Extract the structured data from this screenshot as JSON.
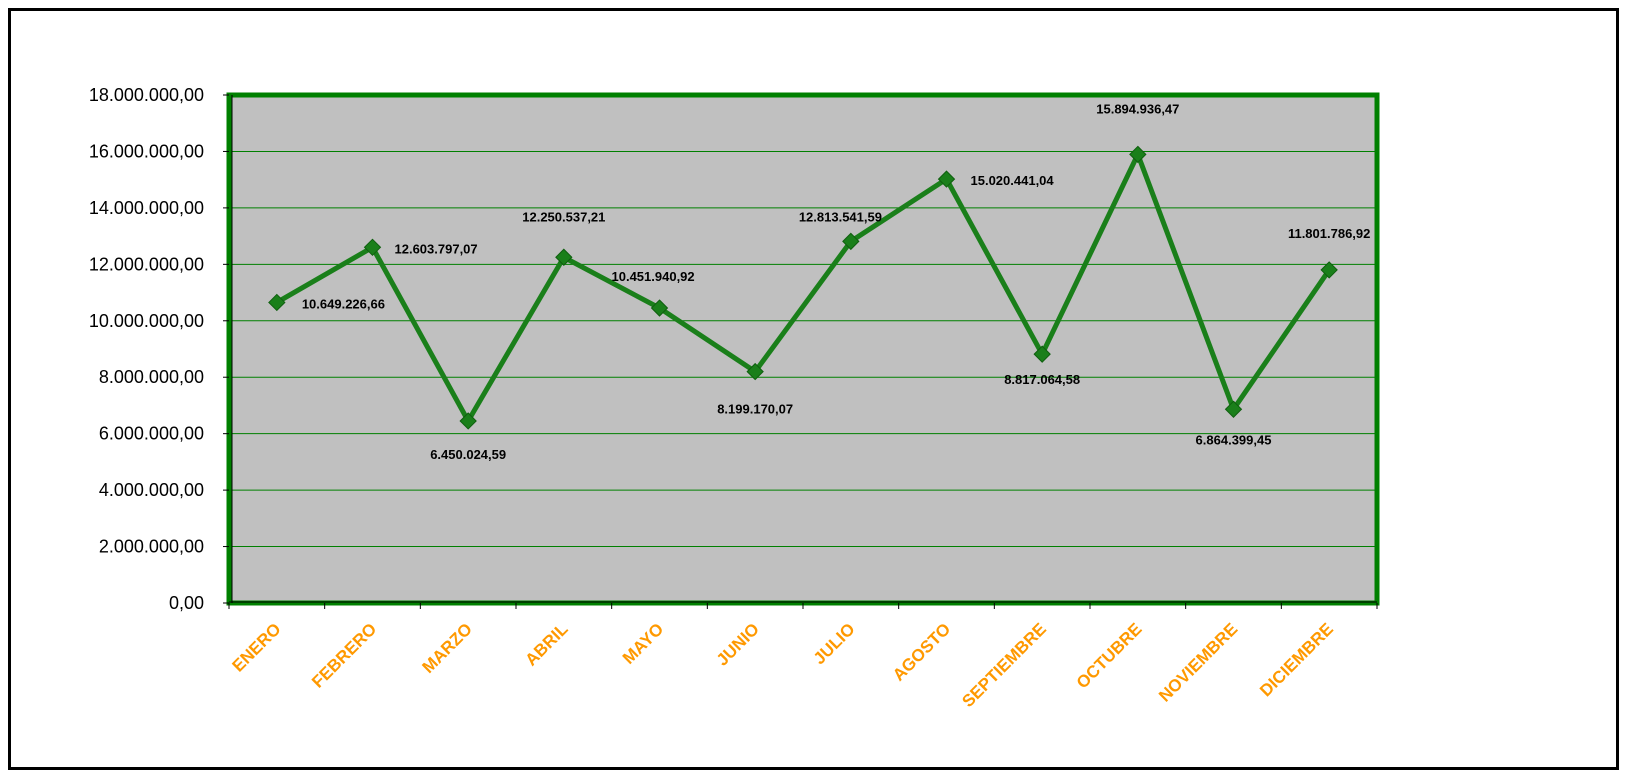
{
  "chart_data": {
    "type": "line",
    "title": "",
    "xlabel": "",
    "ylabel": "",
    "categories": [
      "ENERO",
      "FEBRERO",
      "MARZO",
      "ABRIL",
      "MAYO",
      "JUNIO",
      "JULIO",
      "AGOSTO",
      "SEPTIEMBRE",
      "OCTUBRE",
      "NOVIEMBRE",
      "DICIEMBRE"
    ],
    "series": [
      {
        "values": [
          10649226.66,
          12603797.07,
          6450024.59,
          12250537.21,
          10451940.92,
          8199170.07,
          12813541.59,
          15020441.04,
          8817064.58,
          15894936.47,
          6864399.45,
          11801786.92
        ],
        "labels": [
          "10.649.226,66",
          "12.603.797,07",
          "6.450.024,59",
          "12.250.537,21",
          "10.451.940,92",
          "8.199.170,07",
          "12.813.541,59",
          "15.020.441,04",
          "8.817.064,58",
          "15.894.936,47",
          "6.864.399,45",
          "11.801.786,92"
        ]
      }
    ],
    "yticks": [
      0,
      2000000,
      4000000,
      6000000,
      8000000,
      10000000,
      12000000,
      14000000,
      16000000,
      18000000
    ],
    "ytick_labels": [
      "0,00",
      "2.000.000,00",
      "4.000.000,00",
      "6.000.000,00",
      "8.000.000,00",
      "10.000.000,00",
      "12.000.000,00",
      "14.000.000,00",
      "16.000.000,00",
      "18.000.000,00"
    ],
    "ylim": [
      0,
      18000000
    ],
    "grid": true,
    "legend": "none",
    "colors": {
      "line": "#1a7f1a",
      "marker": "#1a7f1a",
      "plot_background": "#c0c0c0",
      "plot_border": "#008000",
      "gridline": "#008000",
      "x_tick_labels": "#ff9900"
    }
  }
}
